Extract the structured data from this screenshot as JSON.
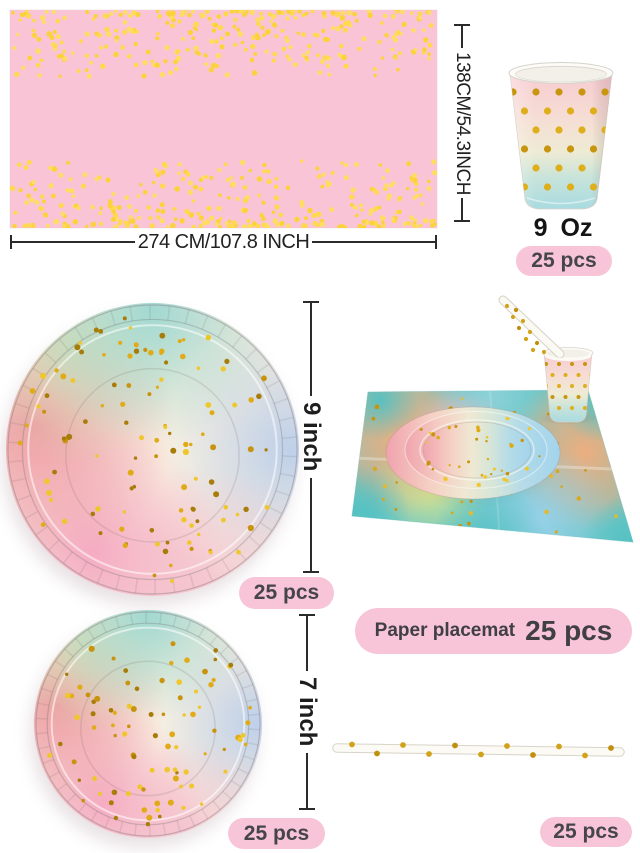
{
  "colors": {
    "badge_pink": "#f7c5d7",
    "tablecloth_pink": "#f9c5d6",
    "confetti_gold": "#ffd84e",
    "foil_gold": "#d9a61e",
    "pastel_aqua": "#a9dbe1",
    "pastel_pink": "#f0a3ae",
    "text_dark": "#3f3f44",
    "dimension_line": "#2b2b2b"
  },
  "tablecloth": {
    "width_label": "274 CM/107.8 INCH",
    "height_label": "138CM/54.3INCH"
  },
  "cup": {
    "size_label": "9 Oz",
    "count_label": "25 pcs"
  },
  "plate_large": {
    "size_label": "9 inch",
    "count_label": "25 pcs"
  },
  "placemat": {
    "name_label": "Paper placemat",
    "count_label": "25 pcs"
  },
  "plate_small": {
    "size_label": "7 inch",
    "count_label": "25 pcs"
  },
  "straw": {
    "count_label": "25 pcs"
  }
}
